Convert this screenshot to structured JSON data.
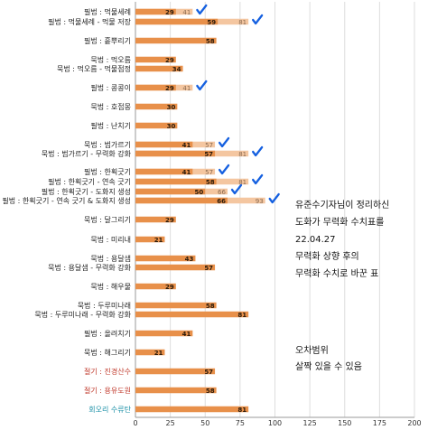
{
  "chart_data": {
    "type": "bar",
    "orientation": "horizontal",
    "xlim": [
      0,
      200
    ],
    "x_ticks": [
      0,
      25,
      50,
      75,
      100,
      125,
      150,
      175,
      200
    ],
    "grid": true,
    "colors": {
      "bar_new": "#e8904a",
      "bar_old": "#f4c6a0",
      "label": "#222222",
      "label_red": "#c0392b",
      "label_teal": "#1a8fa6",
      "check": "#1560e0"
    },
    "categories": [
      {
        "label": "필법 : 먹물세례",
        "new": 29,
        "old": 41,
        "checked": true,
        "color": "normal"
      },
      {
        "label": "필법 : 먹물세례 - 먹물 저장",
        "new": 59,
        "old": 81,
        "checked": true,
        "color": "normal"
      },
      {
        "label": "필법 : 흩뿌리기",
        "new": 58,
        "old": null,
        "checked": false,
        "color": "normal"
      },
      {
        "label": "묵법 : 먹오름",
        "new": 29,
        "old": null,
        "checked": false,
        "color": "normal"
      },
      {
        "label": "묵법 : 먹오름 - 먹물점정",
        "new": 34,
        "old": null,
        "checked": false,
        "color": "normal"
      },
      {
        "label": "필법 : 콩콩이",
        "new": 29,
        "old": 41,
        "checked": true,
        "color": "normal"
      },
      {
        "label": "묵법 : 호접몽",
        "new": 30,
        "old": null,
        "checked": false,
        "color": "normal"
      },
      {
        "label": "필법 : 난치기",
        "new": 30,
        "old": null,
        "checked": false,
        "color": "normal"
      },
      {
        "label": "묵법 : 범가르기",
        "new": 41,
        "old": 57,
        "checked": true,
        "color": "normal"
      },
      {
        "label": "묵법 : 범가르기 - 무력화 강화",
        "new": 57,
        "old": 81,
        "checked": true,
        "color": "normal"
      },
      {
        "label": "필법 : 한획긋기",
        "new": 41,
        "old": 57,
        "checked": true,
        "color": "normal"
      },
      {
        "label": "필법 : 한획긋기 - 연속 긋기",
        "new": 58,
        "old": 81,
        "checked": true,
        "color": "normal"
      },
      {
        "label": "필법 : 한획긋기 - 도화지 생성",
        "new": 50,
        "old": 66,
        "checked": true,
        "color": "normal"
      },
      {
        "label": "필법 : 한획긋기 - 연속 긋기 & 도화지 생성",
        "new": 66,
        "old": 93,
        "checked": true,
        "color": "normal"
      },
      {
        "label": "묵법 : 달그리기",
        "new": 29,
        "old": null,
        "checked": false,
        "color": "normal"
      },
      {
        "label": "묵법 : 미리내",
        "new": 21,
        "old": null,
        "checked": false,
        "color": "normal"
      },
      {
        "label": "묵법 : 용달샘",
        "new": 43,
        "old": null,
        "checked": false,
        "color": "normal"
      },
      {
        "label": "묵법 : 용달샘 - 무력화 강화",
        "new": 57,
        "old": null,
        "checked": false,
        "color": "normal"
      },
      {
        "label": "묵법 : 해우물",
        "new": 29,
        "old": null,
        "checked": false,
        "color": "normal"
      },
      {
        "label": "묵법 : 두루미나래",
        "new": 58,
        "old": null,
        "checked": false,
        "color": "normal"
      },
      {
        "label": "묵법 : 두루미나래 - 무력화 강화",
        "new": 81,
        "old": null,
        "checked": false,
        "color": "normal"
      },
      {
        "label": "필법 : 올려치기",
        "new": 41,
        "old": null,
        "checked": false,
        "color": "normal"
      },
      {
        "label": "묵법 : 해그리기",
        "new": 21,
        "old": null,
        "checked": false,
        "color": "normal"
      },
      {
        "label": "절기 : 진경산수",
        "new": 57,
        "old": null,
        "checked": false,
        "color": "red"
      },
      {
        "label": "절기 : 용유도원",
        "new": 58,
        "old": null,
        "checked": false,
        "color": "red"
      },
      {
        "label": "회오리 수류탄",
        "new": 81,
        "old": null,
        "checked": false,
        "color": "teal"
      }
    ],
    "annotations": [
      "유준수기자님이 정리하신",
      "도화가 무력화 수치표를",
      "22.04.27",
      "무력화 상향 후의",
      "무력화 수치로 바꾼 표",
      "오차범위",
      "살짝 있을 수 있음"
    ]
  }
}
